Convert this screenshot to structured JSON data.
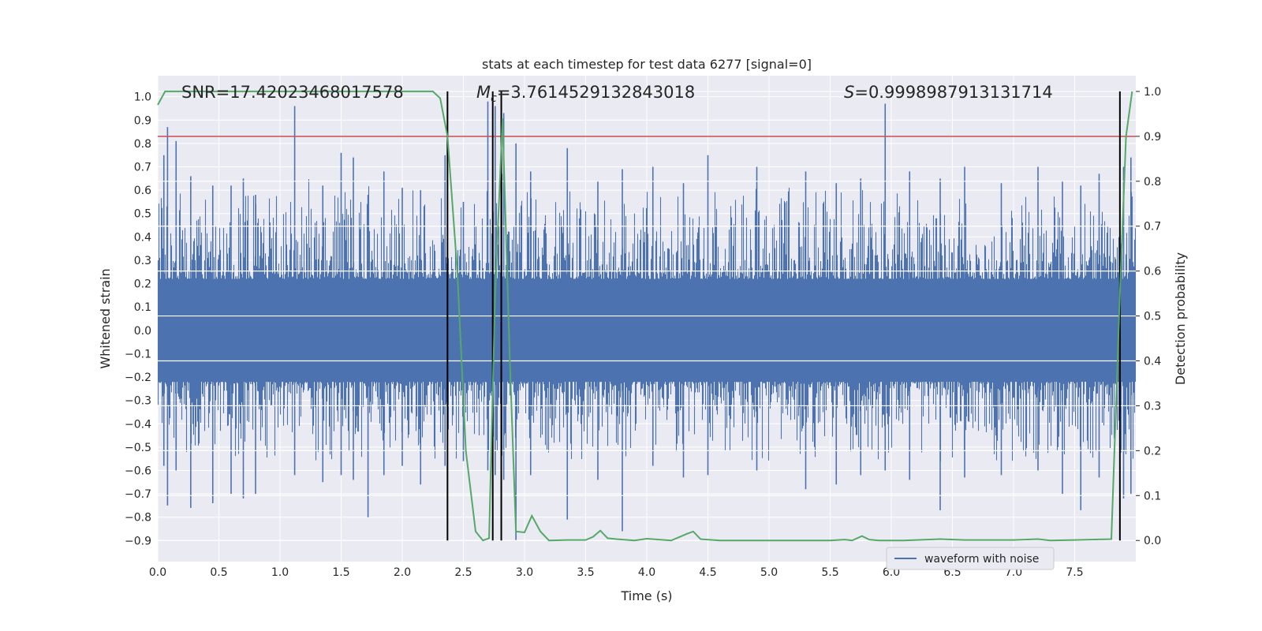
{
  "chart_data": {
    "type": "line",
    "title": "stats at each timestep for test data 6277 [signal=0]",
    "xlabel": "Time (s)",
    "ylabel_left": "Whitened strain",
    "ylabel_right": "Detection probability",
    "xlim": [
      0.0,
      8.0
    ],
    "ylim_left": [
      -0.99,
      1.09
    ],
    "ylim_right": [
      -0.047,
      1.035
    ],
    "x_ticks": [
      "0.0",
      "0.5",
      "1.0",
      "1.5",
      "2.0",
      "2.5",
      "3.0",
      "3.5",
      "4.0",
      "4.5",
      "5.0",
      "5.5",
      "6.0",
      "6.5",
      "7.0",
      "7.5"
    ],
    "y_left_ticks": [
      "-0.9",
      "-0.8",
      "-0.7",
      "-0.6",
      "-0.5",
      "-0.4",
      "-0.3",
      "-0.2",
      "-0.1",
      "0.0",
      "0.1",
      "0.2",
      "0.3",
      "0.4",
      "0.5",
      "0.6",
      "0.7",
      "0.8",
      "0.9",
      "1.0"
    ],
    "y_right_ticks": [
      "0.0",
      "0.1",
      "0.2",
      "0.3",
      "0.4",
      "0.5",
      "0.6",
      "0.7",
      "0.8",
      "0.9",
      "1.0"
    ],
    "grid": true,
    "legend": {
      "placement": "lower-center-right",
      "entries": [
        "waveform with noise"
      ]
    },
    "annotations": {
      "snr": "SNR=17.42023468017578",
      "mc_prefix": "M",
      "mc_sub": "c",
      "mc_value": "=3.7614529132843018",
      "s_prefix": "S",
      "s_value": "=0.9998987913131714"
    },
    "threshold_right": 0.9,
    "vertical_markers": [
      2.37,
      2.74,
      2.81,
      7.87
    ],
    "colors": {
      "waveform": "#4c72b0",
      "probability": "#55a868",
      "threshold": "#c44e52",
      "markers": "#000000",
      "background": "#eaeaf2"
    },
    "waveform_envelope": {
      "description_bins": "peak positive/negative strain per time bin estimated",
      "spikes": [
        [
          0.05,
          0.75,
          -0.58
        ],
        [
          0.08,
          0.87,
          -0.75
        ],
        [
          0.15,
          0.81,
          -0.6
        ],
        [
          0.27,
          0.66,
          -0.76
        ],
        [
          0.45,
          0.62,
          -0.74
        ],
        [
          0.6,
          0.62,
          -0.7
        ],
        [
          0.7,
          0.65,
          -0.72
        ],
        [
          0.8,
          0.58,
          -0.7
        ],
        [
          1.12,
          0.96,
          -0.62
        ],
        [
          1.35,
          0.62,
          -0.65
        ],
        [
          1.5,
          0.76,
          -0.62
        ],
        [
          1.6,
          0.74,
          -0.64
        ],
        [
          1.72,
          0.58,
          -0.8
        ],
        [
          1.85,
          0.68,
          -0.62
        ],
        [
          2.0,
          0.61,
          -0.58
        ],
        [
          2.15,
          0.6,
          -0.66
        ],
        [
          2.35,
          0.75,
          -0.58
        ],
        [
          2.5,
          0.55,
          -0.56
        ],
        [
          2.7,
          0.98,
          -0.6
        ],
        [
          2.76,
          0.96,
          -0.62
        ],
        [
          2.83,
          0.93,
          -0.64
        ],
        [
          2.93,
          0.8,
          -0.9
        ],
        [
          3.05,
          0.68,
          -0.62
        ],
        [
          3.35,
          0.78,
          -0.81
        ],
        [
          3.6,
          0.64,
          -0.64
        ],
        [
          3.8,
          0.69,
          -0.86
        ],
        [
          4.05,
          0.7,
          -0.58
        ],
        [
          4.3,
          0.63,
          -0.63
        ],
        [
          4.5,
          0.75,
          -0.62
        ],
        [
          4.9,
          0.7,
          -0.6
        ],
        [
          5.3,
          0.68,
          -0.68
        ],
        [
          5.55,
          0.63,
          -0.66
        ],
        [
          5.75,
          0.65,
          -0.62
        ],
        [
          5.95,
          0.97,
          -0.6
        ],
        [
          6.15,
          0.68,
          -0.64
        ],
        [
          6.4,
          0.65,
          -0.77
        ],
        [
          6.6,
          0.7,
          -0.63
        ],
        [
          6.9,
          0.63,
          -0.62
        ],
        [
          7.2,
          0.7,
          -0.6
        ],
        [
          7.4,
          0.64,
          -0.7
        ],
        [
          7.55,
          0.62,
          -0.77
        ],
        [
          7.7,
          0.67,
          -0.63
        ],
        [
          7.9,
          0.7,
          -0.72
        ],
        [
          7.96,
          0.74,
          -0.7
        ]
      ]
    },
    "probability_series": {
      "x": [
        0.0,
        0.06,
        0.2,
        0.5,
        1.0,
        1.5,
        2.0,
        2.25,
        2.31,
        2.37,
        2.45,
        2.52,
        2.6,
        2.66,
        2.71,
        2.76,
        2.82,
        2.88,
        2.93,
        3.0,
        3.06,
        3.13,
        3.2,
        3.35,
        3.5,
        3.56,
        3.62,
        3.68,
        3.75,
        3.9,
        4.0,
        4.2,
        4.33,
        4.38,
        4.44,
        4.6,
        5.0,
        5.5,
        5.62,
        5.68,
        5.76,
        5.82,
        5.9,
        6.1,
        6.4,
        6.6,
        7.0,
        7.2,
        7.3,
        7.5,
        7.8,
        7.87,
        7.92,
        7.97
      ],
      "y": [
        0.97,
        1.0,
        1.0,
        1.0,
        1.0,
        1.0,
        1.0,
        1.0,
        0.985,
        0.9,
        0.6,
        0.2,
        0.02,
        0.0,
        0.005,
        0.55,
        0.94,
        0.4,
        0.02,
        0.018,
        0.055,
        0.02,
        0.0,
        0.001,
        0.001,
        0.008,
        0.022,
        0.005,
        0.003,
        0.0,
        0.004,
        0.0,
        0.015,
        0.02,
        0.003,
        0.0,
        0.0,
        0.0,
        0.002,
        0.0,
        0.01,
        0.002,
        0.0,
        0.0,
        0.003,
        0.001,
        0.001,
        0.003,
        0.0,
        0.001,
        0.003,
        0.55,
        0.9,
        1.0
      ]
    }
  }
}
